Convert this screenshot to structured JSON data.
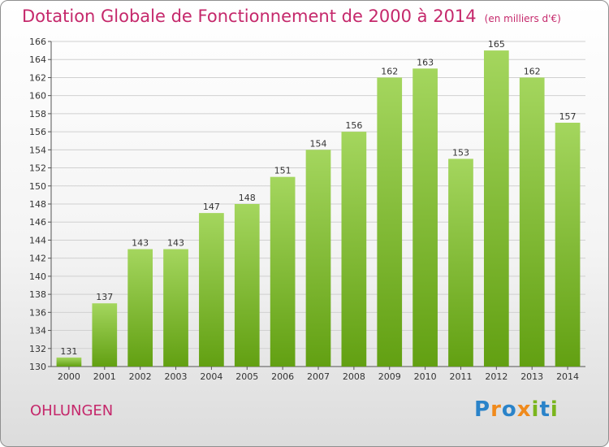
{
  "title": "Dotation Globale de Fonctionnement de 2000 à 2014",
  "unit": "(en milliers d'€)",
  "commune": "OHLUNGEN",
  "logo": {
    "text": "Proxiti",
    "letters": [
      {
        "ch": "P",
        "color": "#2a83c9"
      },
      {
        "ch": "r",
        "color": "#f08a1c"
      },
      {
        "ch": "o",
        "color": "#2a83c9"
      },
      {
        "ch": "x",
        "color": "#f08a1c"
      },
      {
        "ch": "i",
        "color": "#7ab51d"
      },
      {
        "ch": "t",
        "color": "#2a83c9"
      },
      {
        "ch": "i",
        "color": "#7ab51d"
      }
    ]
  },
  "colors": {
    "title": "#c5286b",
    "bar_light": "#a4d65e",
    "bar_dark": "#62a012",
    "grid": "#d0d0d0"
  },
  "chart_data": {
    "type": "bar",
    "categories": [
      "2000",
      "2001",
      "2002",
      "2003",
      "2004",
      "2005",
      "2006",
      "2007",
      "2008",
      "2009",
      "2010",
      "2011",
      "2012",
      "2013",
      "2014"
    ],
    "values": [
      131,
      137,
      143,
      143,
      147,
      148,
      151,
      154,
      156,
      162,
      163,
      153,
      165,
      162,
      157
    ],
    "ylim": [
      130,
      166
    ],
    "yticks": [
      130,
      132,
      134,
      136,
      138,
      140,
      142,
      144,
      146,
      148,
      150,
      152,
      154,
      156,
      158,
      160,
      162,
      164,
      166
    ],
    "grid": true,
    "data_labels": true
  }
}
